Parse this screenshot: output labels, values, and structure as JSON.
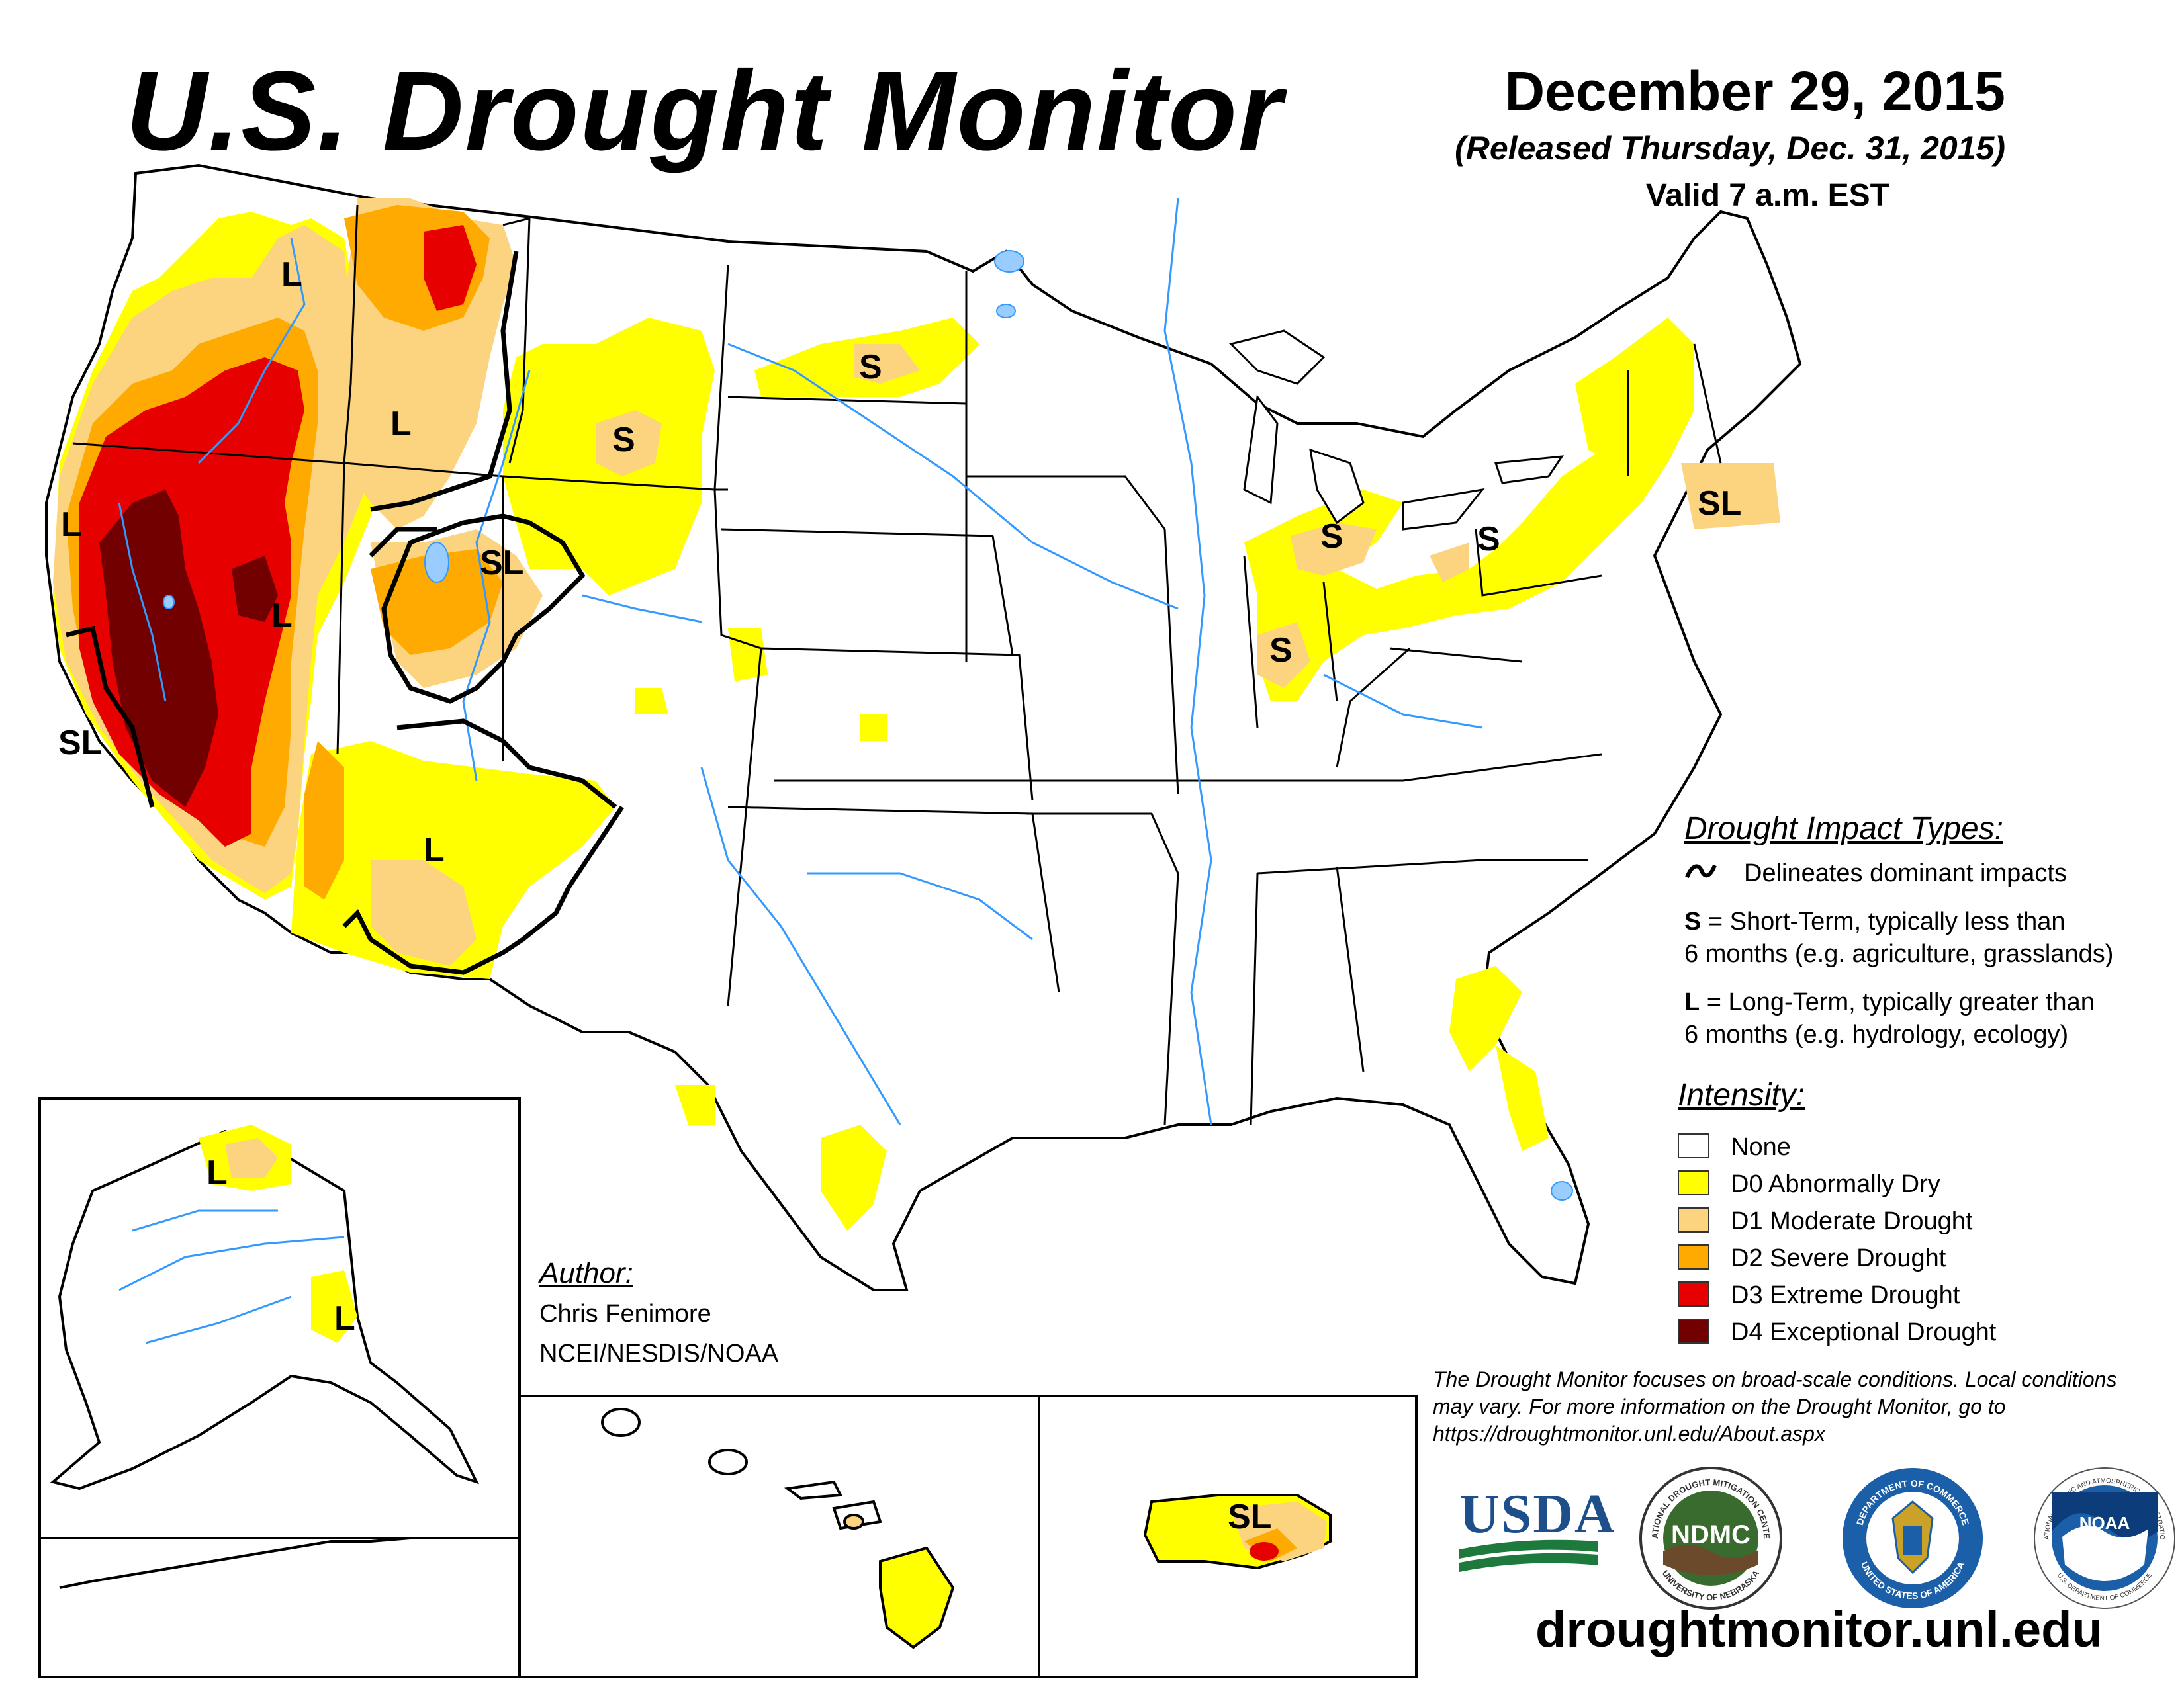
{
  "title": "U.S. Drought Monitor",
  "date": "December 29, 2015",
  "released": "(Released Thursday, Dec. 31, 2015)",
  "valid": "Valid 7 a.m. EST",
  "impact_types": {
    "heading": "Drought Impact Types:",
    "delineates": "Delineates dominant impacts",
    "short_term_key": "S",
    "short_term_line1": " = Short-Term, typically less than",
    "short_term_line2": "6 months (e.g. agriculture, grasslands)",
    "long_term_key": "L",
    "long_term_line1": " = Long-Term, typically greater than",
    "long_term_line2": "6 months (e.g. hydrology, ecology)"
  },
  "intensity": {
    "heading": "Intensity:",
    "items": [
      {
        "label": "None",
        "color": "#ffffff"
      },
      {
        "label": "D0 Abnormally Dry",
        "color": "#ffff00"
      },
      {
        "label": "D1 Moderate Drought",
        "color": "#fcd37f"
      },
      {
        "label": "D2 Severe Drought",
        "color": "#ffaa00"
      },
      {
        "label": "D3 Extreme Drought",
        "color": "#e60000"
      },
      {
        "label": "D4 Exceptional Drought",
        "color": "#730000"
      }
    ]
  },
  "author": {
    "heading": "Author:",
    "name": "Chris Fenimore",
    "org": "NCEI/NESDIS/NOAA"
  },
  "note": "The Drought Monitor focuses on broad-scale conditions. Local conditions may vary. For more information on the Drought Monitor, go to https://droughtmonitor.unl.edu/About.aspx",
  "url": "droughtmonitor.unl.edu",
  "map_labels": {
    "L": "L",
    "S": "S",
    "SL": "SL"
  },
  "logos": {
    "usda": "USDA",
    "ndmc": "NDMC",
    "ndmc_ring_top": "NATIONAL DROUGHT MITIGATION CENTER",
    "ndmc_ring_bottom": "UNIVERSITY OF NEBRASKA",
    "commerce_ring_top": "DEPARTMENT OF COMMERCE",
    "commerce_ring_bottom": "UNITED STATES OF AMERICA",
    "noaa": "NOAA",
    "noaa_ring_top": "NATIONAL OCEANIC AND ATMOSPHERIC ADMINISTRATION",
    "noaa_ring_bottom": "U.S. DEPARTMENT OF COMMERCE"
  },
  "colors": {
    "river": "#3399ff",
    "lake": "#99ccff",
    "boundary": "#000000"
  }
}
